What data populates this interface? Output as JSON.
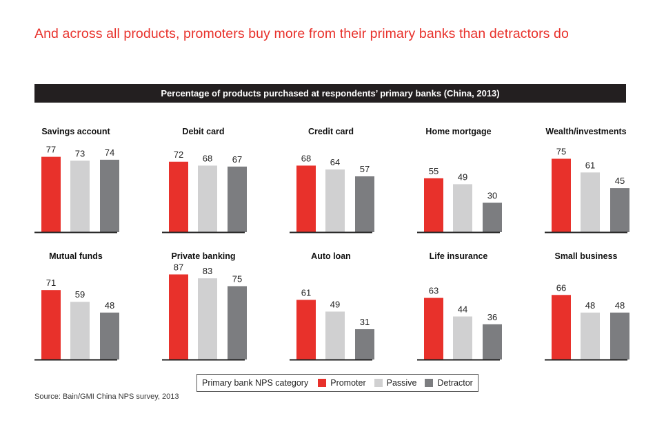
{
  "headline": "And across all products, promoters buy more from their primary banks than detractors do",
  "banner_title": "Percentage of products purchased at respondents’ primary banks (China, 2013)",
  "legend": {
    "title": "Primary bank NPS category",
    "items": [
      {
        "label": "Promoter",
        "color": "#e8312b"
      },
      {
        "label": "Passive",
        "color": "#d0d0d1"
      },
      {
        "label": "Detractor",
        "color": "#7c7d80"
      }
    ]
  },
  "source": "Source: Bain/GMI China NPS survey, 2013",
  "chart_data": [
    {
      "type": "bar",
      "title": "Savings account",
      "categories": [
        "Promoter",
        "Passive",
        "Detractor"
      ],
      "values": [
        77,
        73,
        74
      ],
      "ylim": [
        0,
        100
      ]
    },
    {
      "type": "bar",
      "title": "Debit card",
      "categories": [
        "Promoter",
        "Passive",
        "Detractor"
      ],
      "values": [
        72,
        68,
        67
      ],
      "ylim": [
        0,
        100
      ]
    },
    {
      "type": "bar",
      "title": "Credit card",
      "categories": [
        "Promoter",
        "Passive",
        "Detractor"
      ],
      "values": [
        68,
        64,
        57
      ],
      "ylim": [
        0,
        100
      ]
    },
    {
      "type": "bar",
      "title": "Home mortgage",
      "categories": [
        "Promoter",
        "Passive",
        "Detractor"
      ],
      "values": [
        55,
        49,
        30
      ],
      "ylim": [
        0,
        100
      ]
    },
    {
      "type": "bar",
      "title": "Wealth/investments",
      "categories": [
        "Promoter",
        "Passive",
        "Detractor"
      ],
      "values": [
        75,
        61,
        45
      ],
      "ylim": [
        0,
        100
      ]
    },
    {
      "type": "bar",
      "title": "Mutual funds",
      "categories": [
        "Promoter",
        "Passive",
        "Detractor"
      ],
      "values": [
        71,
        59,
        48
      ],
      "ylim": [
        0,
        100
      ]
    },
    {
      "type": "bar",
      "title": "Private banking",
      "categories": [
        "Promoter",
        "Passive",
        "Detractor"
      ],
      "values": [
        87,
        83,
        75
      ],
      "ylim": [
        0,
        100
      ]
    },
    {
      "type": "bar",
      "title": "Auto loan",
      "categories": [
        "Promoter",
        "Passive",
        "Detractor"
      ],
      "values": [
        61,
        49,
        31
      ],
      "ylim": [
        0,
        100
      ]
    },
    {
      "type": "bar",
      "title": "Life insurance",
      "categories": [
        "Promoter",
        "Passive",
        "Detractor"
      ],
      "values": [
        63,
        44,
        36
      ],
      "ylim": [
        0,
        100
      ]
    },
    {
      "type": "bar",
      "title": "Small business",
      "categories": [
        "Promoter",
        "Passive",
        "Detractor"
      ],
      "values": [
        66,
        48,
        48
      ],
      "ylim": [
        0,
        100
      ]
    }
  ]
}
